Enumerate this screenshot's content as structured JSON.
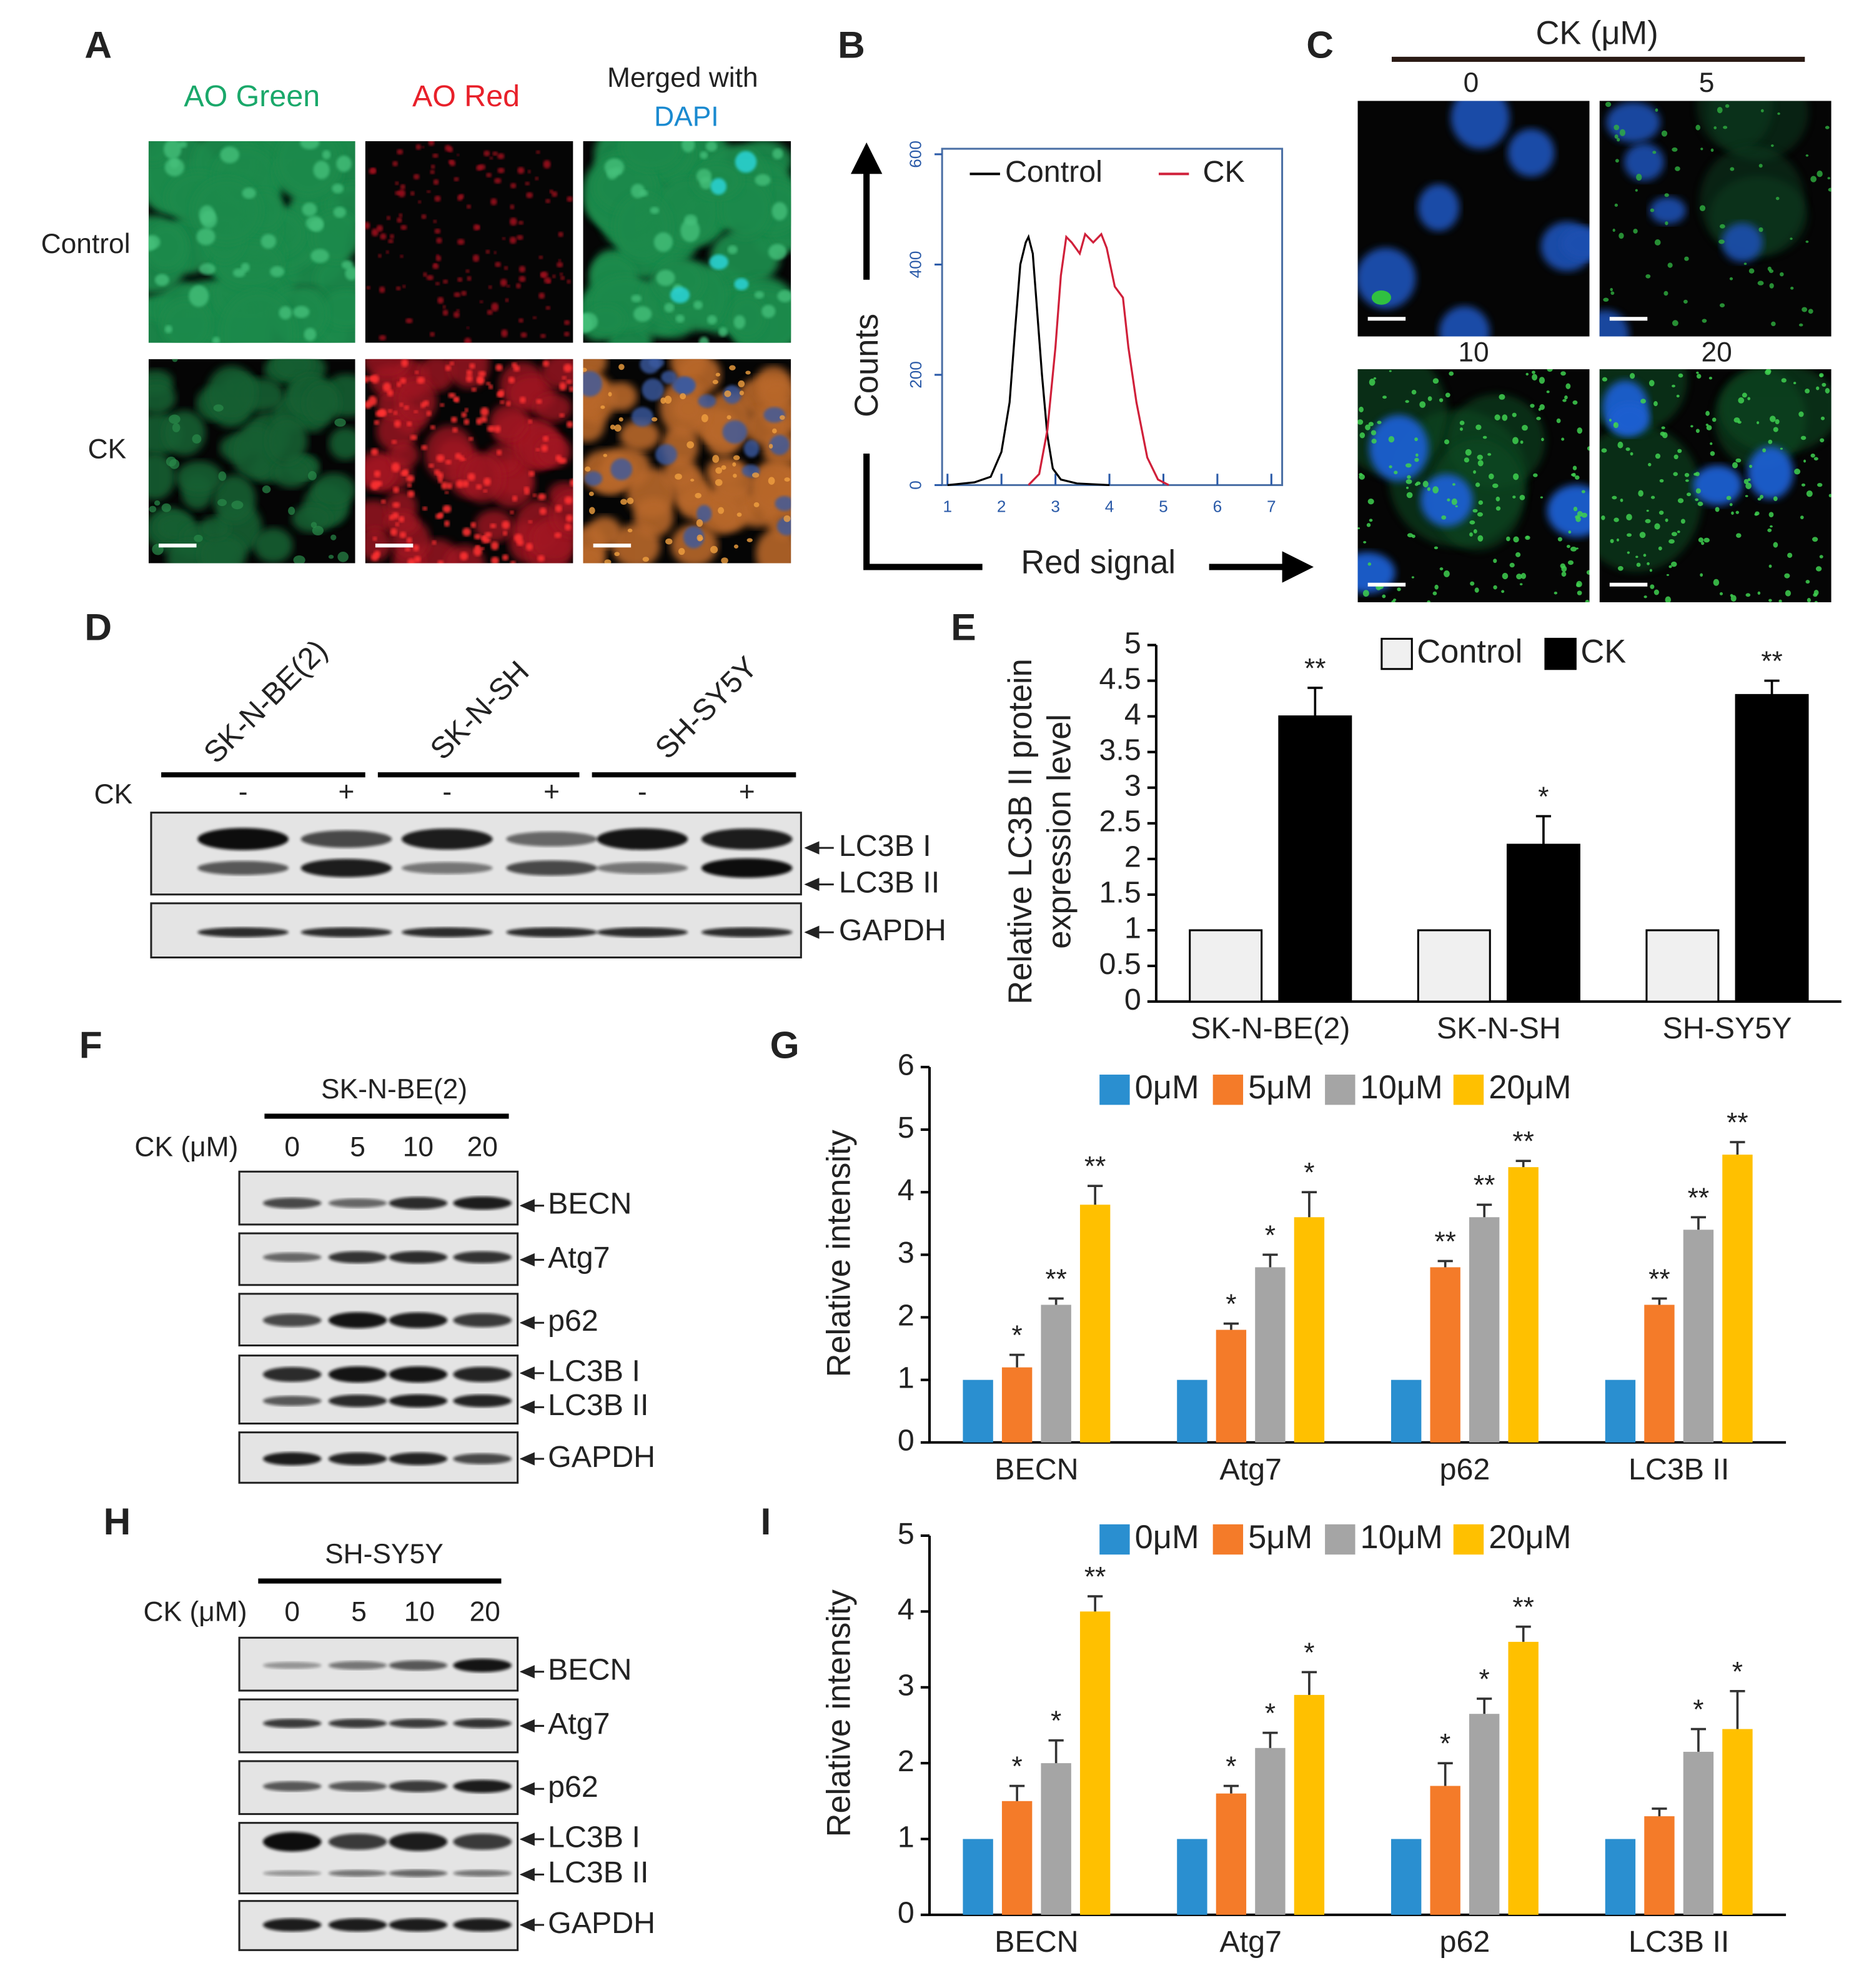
{
  "panel_labels": [
    "A",
    "B",
    "C",
    "D",
    "E",
    "F",
    "G",
    "H",
    "I"
  ],
  "panel_a": {
    "column_headers": [
      "AO Green",
      "AO Red",
      "Merged with"
    ],
    "dapi_label": "DAPI",
    "row_labels": [
      "Control",
      "CK"
    ]
  },
  "panel_c": {
    "title": "CK (μM)",
    "doses": [
      "0",
      "5",
      "10",
      "20"
    ]
  },
  "panel_d": {
    "cell_lines": [
      "SK-N-BE(2)",
      "SK-N-SH",
      "SH-SY5Y"
    ],
    "treatment_label": "CK",
    "treatments": [
      "-",
      "+",
      "-",
      "+",
      "-",
      "+"
    ],
    "bands": [
      "LC3B I",
      "LC3B II",
      "GAPDH"
    ]
  },
  "panel_f": {
    "cell_line": "SK-N-BE(2)",
    "dose_label": "CK (μM)",
    "doses": [
      "0",
      "5",
      "10",
      "20"
    ],
    "bands": [
      "BECN",
      "Atg7",
      "p62",
      "LC3B I",
      "LC3B II",
      "GAPDH"
    ]
  },
  "panel_h": {
    "cell_line": "SH-SY5Y",
    "dose_label": "CK (μM)",
    "doses": [
      "0",
      "5",
      "10",
      "20"
    ],
    "bands": [
      "BECN",
      "Atg7",
      "p62",
      "LC3B I",
      "LC3B II",
      "GAPDH"
    ]
  },
  "chart_data": [
    {
      "type": "line",
      "x_label": "Red signal",
      "y_label": "Counts",
      "xlim": [
        0.9,
        7.2
      ],
      "ylim": [
        0,
        610
      ],
      "xticks": [
        1,
        2,
        3,
        4,
        5,
        6,
        7
      ],
      "yticks": [
        0,
        200,
        400,
        600
      ],
      "series": [
        {
          "name": "Control",
          "color": "#000000",
          "x": [
            1.0,
            1.5,
            1.8,
            2.0,
            2.15,
            2.25,
            2.35,
            2.45,
            2.5,
            2.58,
            2.65,
            2.75,
            2.85,
            2.95,
            3.1,
            3.4,
            4.0
          ],
          "values": [
            0,
            5,
            15,
            60,
            150,
            280,
            400,
            440,
            450,
            420,
            330,
            200,
            90,
            30,
            10,
            3,
            0
          ]
        },
        {
          "name": "CK",
          "color": "#d0203a",
          "x": [
            2.5,
            2.7,
            2.85,
            3.0,
            3.1,
            3.2,
            3.3,
            3.45,
            3.55,
            3.7,
            3.85,
            3.95,
            4.1,
            4.25,
            4.35,
            4.5,
            4.7,
            4.9,
            5.1
          ],
          "values": [
            0,
            20,
            100,
            250,
            380,
            450,
            440,
            420,
            455,
            440,
            455,
            430,
            360,
            340,
            250,
            150,
            50,
            10,
            0
          ]
        }
      ]
    },
    {
      "type": "bar",
      "y_label": [
        "Relative LC3B II protein",
        "expression level"
      ],
      "categories": [
        "SK-N-BE(2)",
        "SK-N-SH",
        "SH-SY5Y"
      ],
      "ylim": [
        0,
        5
      ],
      "yticks": [
        0,
        0.5,
        1,
        1.5,
        2,
        2.5,
        3,
        3.5,
        4,
        4.5,
        5
      ],
      "series": [
        {
          "name": "Control",
          "color": "#f0f0f0",
          "values": [
            1,
            1,
            1
          ]
        },
        {
          "name": "CK",
          "color": "#000000",
          "values": [
            4.0,
            2.2,
            4.3
          ],
          "errors": [
            0.4,
            0.4,
            0.2
          ],
          "significance": [
            "**",
            "*",
            "**"
          ]
        }
      ]
    },
    {
      "type": "bar",
      "y_label": [
        "Relative intensity"
      ],
      "categories": [
        "BECN",
        "Atg7",
        "p62",
        "LC3B II"
      ],
      "ylim": [
        0,
        6
      ],
      "yticks": [
        0,
        1,
        2,
        3,
        4,
        5,
        6
      ],
      "series": [
        {
          "name": "0μM",
          "color": "#2a8fd0",
          "values": [
            1,
            1,
            1,
            1
          ]
        },
        {
          "name": "5μM",
          "color": "#f47b29",
          "values": [
            1.2,
            1.8,
            2.8,
            2.2
          ],
          "errors": [
            0.2,
            0.1,
            0.1,
            0.1
          ],
          "significance": [
            "*",
            "*",
            "**",
            "**"
          ]
        },
        {
          "name": "10μM",
          "color": "#a5a5a5",
          "values": [
            2.2,
            2.8,
            3.6,
            3.4
          ],
          "errors": [
            0.1,
            0.2,
            0.2,
            0.2
          ],
          "significance": [
            "**",
            "*",
            "**",
            "**"
          ]
        },
        {
          "name": "20μM",
          "color": "#ffc000",
          "values": [
            3.8,
            3.6,
            4.4,
            4.6
          ],
          "errors": [
            0.3,
            0.4,
            0.1,
            0.2
          ],
          "significance": [
            "**",
            "*",
            "**",
            "**"
          ]
        }
      ]
    },
    {
      "type": "bar",
      "y_label": [
        "Relative intensity"
      ],
      "categories": [
        "BECN",
        "Atg7",
        "p62",
        "LC3B II"
      ],
      "ylim": [
        0,
        5
      ],
      "yticks": [
        0,
        1,
        2,
        3,
        4,
        5
      ],
      "series": [
        {
          "name": "0μM",
          "color": "#2a8fd0",
          "values": [
            1,
            1,
            1,
            1
          ]
        },
        {
          "name": "5μM",
          "color": "#f47b29",
          "values": [
            1.5,
            1.6,
            1.7,
            1.3
          ],
          "errors": [
            0.2,
            0.1,
            0.3,
            0.1
          ],
          "significance": [
            "*",
            "*",
            "*",
            null
          ]
        },
        {
          "name": "10μM",
          "color": "#a5a5a5",
          "values": [
            2.0,
            2.2,
            2.65,
            2.15
          ],
          "errors": [
            0.3,
            0.2,
            0.2,
            0.3
          ],
          "significance": [
            "*",
            "*",
            "*",
            "*"
          ]
        },
        {
          "name": "20μM",
          "color": "#ffc000",
          "values": [
            4.0,
            2.9,
            3.6,
            2.45
          ],
          "errors": [
            0.2,
            0.3,
            0.2,
            0.5
          ],
          "significance": [
            "**",
            "*",
            "**",
            "*"
          ]
        }
      ]
    }
  ]
}
